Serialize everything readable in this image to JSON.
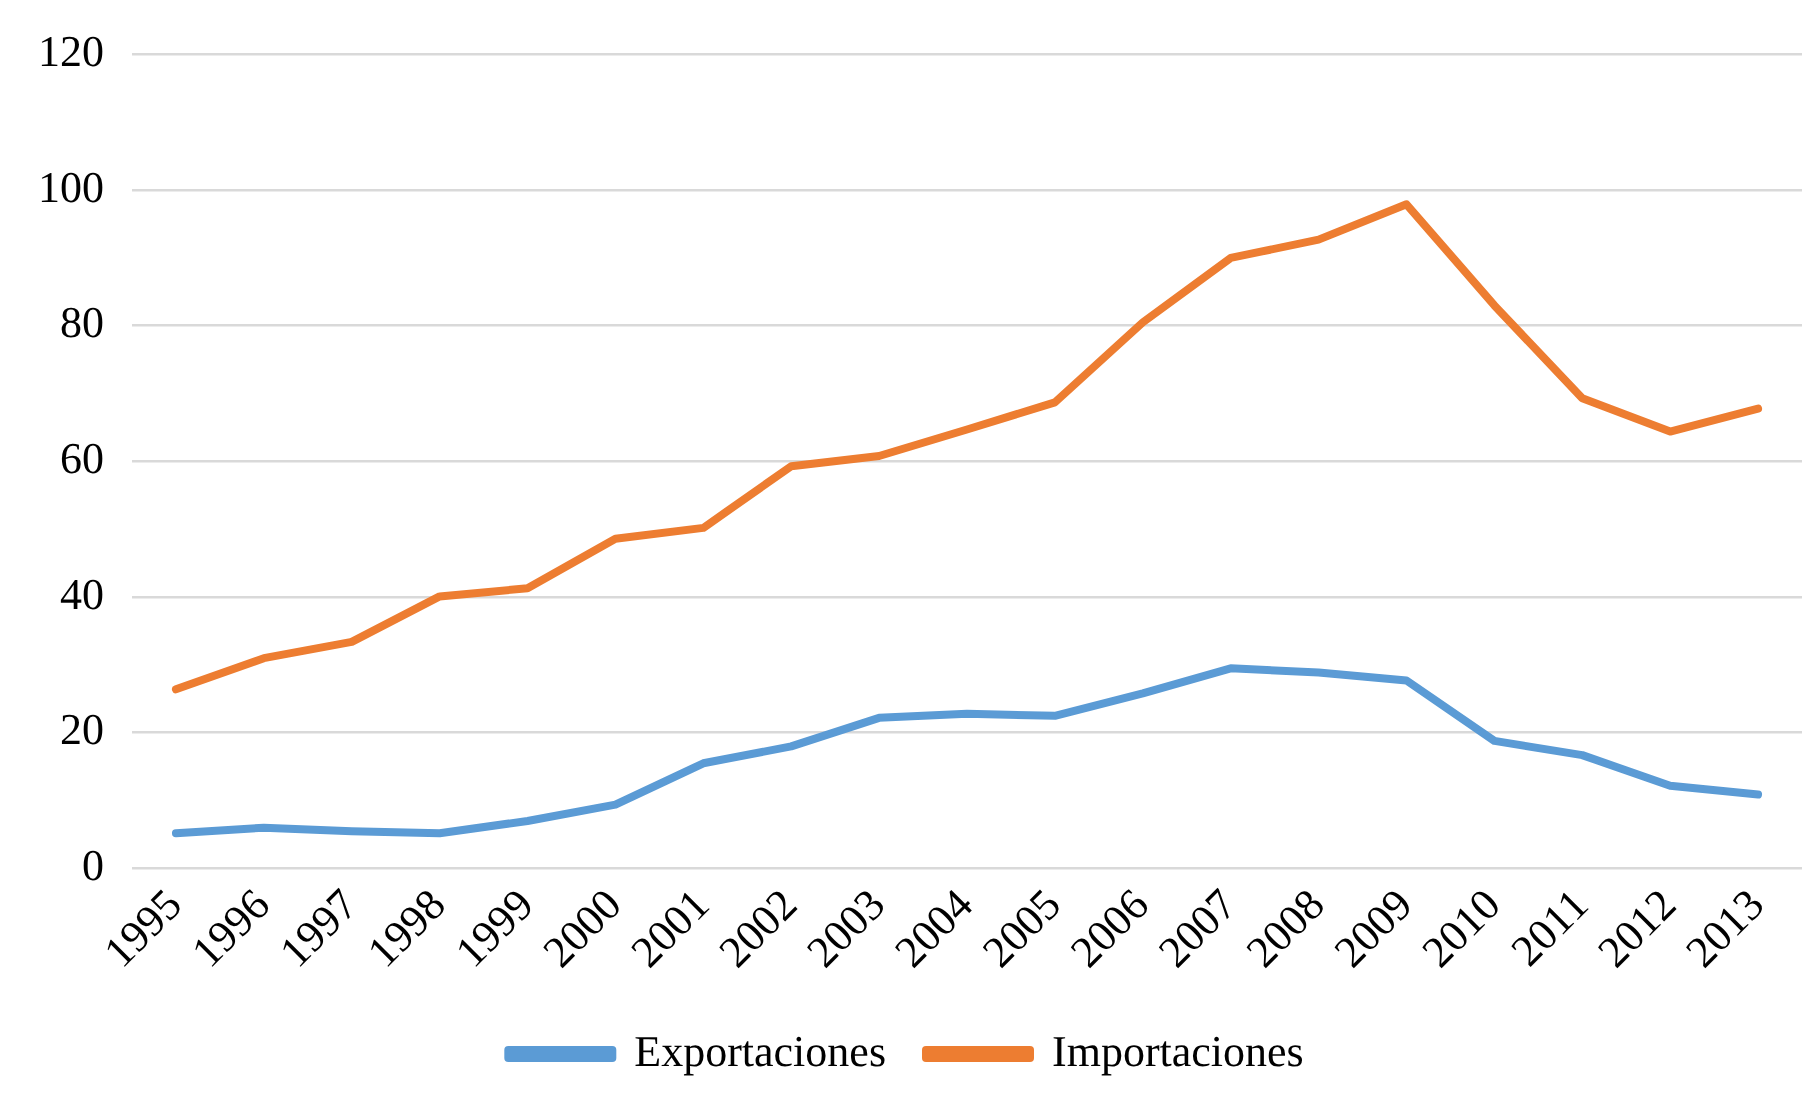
{
  "chart_data": {
    "type": "line",
    "categories": [
      "1995",
      "1996",
      "1997",
      "1998",
      "1999",
      "2000",
      "2001",
      "2002",
      "2003",
      "2004",
      "2005",
      "2006",
      "2007",
      "2008",
      "2009",
      "2010",
      "2011",
      "2012",
      "2013"
    ],
    "series": [
      {
        "name": "Exportaciones",
        "color": "#5b9bd5",
        "values": [
          5.2,
          6,
          5.5,
          5.2,
          7,
          9.4,
          15.5,
          18,
          22.2,
          22.8,
          22.5,
          25.8,
          29.5,
          28.9,
          27.7,
          18.8,
          16.7,
          12.2,
          10.9
        ]
      },
      {
        "name": "Importaciones",
        "color": "#ed7d31",
        "values": [
          26.4,
          31,
          33.4,
          40.1,
          41.3,
          48.6,
          50.2,
          59.3,
          60.8,
          64.7,
          68.7,
          80.5,
          90,
          92.7,
          97.9,
          83,
          69.3,
          64.4,
          67.8
        ]
      }
    ],
    "ylim": [
      0,
      120
    ],
    "yticks": [
      0,
      20,
      40,
      60,
      80,
      100,
      120
    ],
    "grid": "y",
    "legend": "bottom",
    "marker": "none",
    "line_style": "solid"
  }
}
